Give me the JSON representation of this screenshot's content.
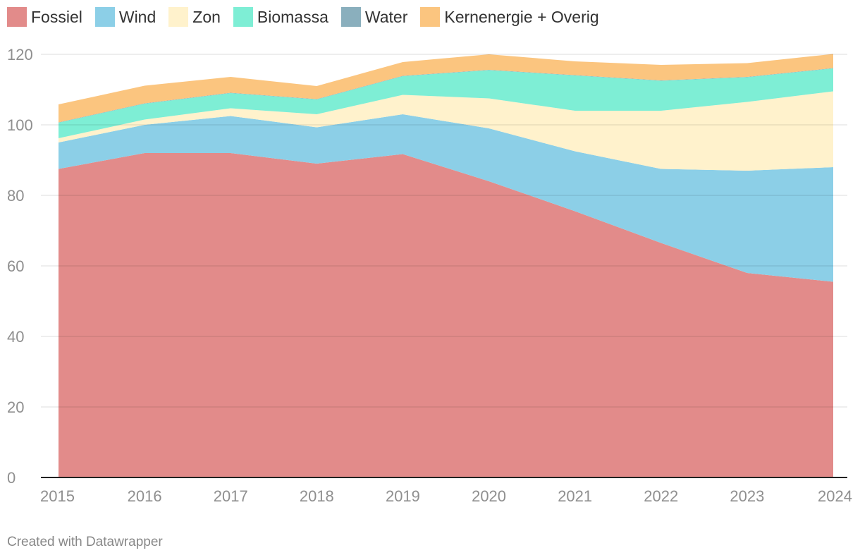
{
  "chart_data": {
    "type": "area",
    "stacked": true,
    "title": "",
    "xlabel": "",
    "ylabel": "",
    "x": [
      "2015",
      "2016",
      "2017",
      "2018",
      "2019",
      "2020",
      "2021",
      "2022",
      "2023",
      "2024"
    ],
    "ylim": [
      0,
      120
    ],
    "yticks": [
      "0",
      "20",
      "40",
      "60",
      "80",
      "100",
      "120"
    ],
    "grid": true,
    "legend_position": "top-left",
    "series": [
      {
        "name": "Fossiel",
        "color": "#e28b8a",
        "values": [
          87.5,
          92,
          92,
          89,
          91.7,
          84,
          75.5,
          66.5,
          58,
          55.5
        ]
      },
      {
        "name": "Wind",
        "color": "#8ccfe7",
        "values": [
          7.5,
          8,
          10.5,
          10.3,
          11.3,
          15,
          17,
          21,
          29,
          32.5
        ]
      },
      {
        "name": "Zon",
        "color": "#fff2cc",
        "values": [
          1.2,
          1.5,
          2.2,
          3.7,
          5.5,
          8.5,
          11.5,
          16.5,
          19.5,
          21.5
        ]
      },
      {
        "name": "Biomassa",
        "color": "#7eeed5",
        "values": [
          4.4,
          4.5,
          4.3,
          4.2,
          5.3,
          8,
          10,
          8.5,
          7,
          6.5
        ]
      },
      {
        "name": "Water",
        "color": "#8aafbd",
        "values": [
          0.1,
          0.1,
          0.1,
          0.1,
          0.1,
          0.1,
          0.1,
          0.1,
          0.1,
          0.1
        ]
      },
      {
        "name": "Kernenergie + Overig",
        "color": "#fbc57f",
        "values": [
          5.1,
          5,
          4.5,
          3.7,
          3.9,
          4.4,
          3.9,
          4.4,
          3.9,
          4.0
        ]
      }
    ]
  },
  "footer": {
    "credit": "Created with Datawrapper"
  }
}
